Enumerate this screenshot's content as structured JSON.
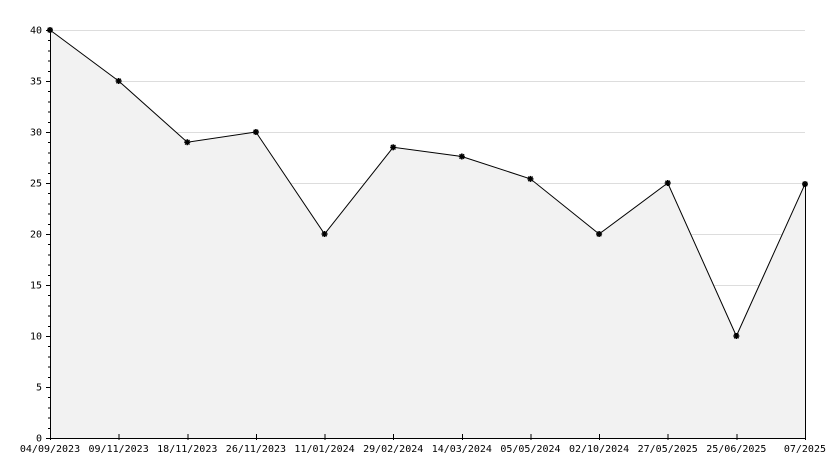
{
  "chart_data": {
    "type": "area",
    "title": "",
    "xlabel": "",
    "ylabel": "",
    "x": [
      "04/09/2023",
      "09/11/2023",
      "18/11/2023",
      "26/11/2023",
      "11/01/2024",
      "29/02/2024",
      "14/03/2024",
      "05/05/2024",
      "02/10/2024",
      "27/05/2025",
      "25/06/2025",
      "07/2025"
    ],
    "x_tick_labels": [
      "04/09/2023",
      "09/11/2023",
      "18/11/2023",
      "26/11/2023",
      "11/01/2024",
      "29/02/2024",
      "14/03/2024",
      "05/05/2024",
      "02/10/2024",
      "27/05/2025",
      "25/06/2025",
      "07/2025"
    ],
    "values": [
      40,
      35,
      29,
      30,
      20,
      28.5,
      27.6,
      25.4,
      20,
      25,
      10,
      24.9
    ],
    "ylim": [
      0,
      40
    ],
    "y_ticks": [
      0,
      5,
      10,
      15,
      20,
      25,
      30,
      35,
      40
    ],
    "grid": true,
    "legend": "none",
    "marker": "star",
    "colors": {
      "line": "#000000",
      "fill": "#f2f2f2",
      "grid": "#dddddd",
      "axis": "#000000"
    }
  }
}
